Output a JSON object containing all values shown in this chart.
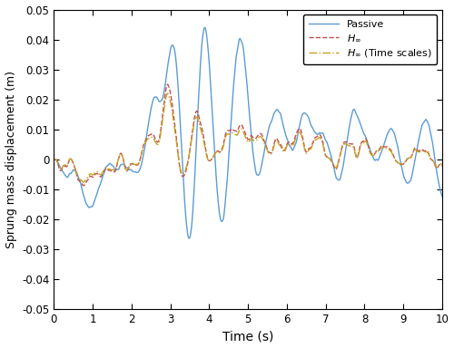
{
  "title": "",
  "xlabel": "Time (s)",
  "ylabel": "Sprung mass displacement (m)",
  "xlim": [
    0,
    10
  ],
  "ylim": [
    -0.05,
    0.05
  ],
  "xticks": [
    0,
    1,
    2,
    3,
    4,
    5,
    6,
    7,
    8,
    9,
    10
  ],
  "yticks": [
    -0.05,
    -0.04,
    -0.03,
    -0.02,
    -0.01,
    0,
    0.01,
    0.02,
    0.03,
    0.04,
    0.05
  ],
  "legend": [
    {
      "label": "Passive",
      "color": "#5B9BD5",
      "linestyle": "solid",
      "linewidth": 1.0
    },
    {
      "label": "$H_\\infty$",
      "color": "#C0504D",
      "linestyle": "dashed",
      "linewidth": 1.0
    },
    {
      "label": "$H_\\infty$ (Time scales)",
      "color": "#C8A020",
      "linestyle": "dashdot",
      "linewidth": 1.0
    }
  ],
  "background_color": "#ffffff"
}
